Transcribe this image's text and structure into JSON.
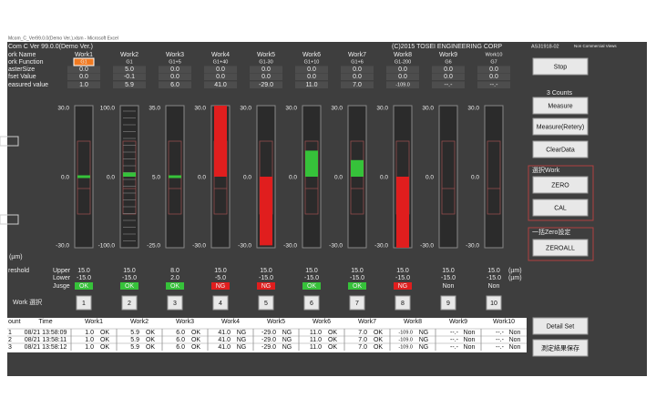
{
  "window_title": "Mcom_C_Ver99.0.0(Demo Ver.).xlsm - Microsoft Excel",
  "header": {
    "app": "Com C  Ver 99.0.0(Demo Ver.)",
    "copyright": "(C)2015 TOSEI ENGINEERING CORP",
    "code": "AS31918-02",
    "note": "Non Commercial Views"
  },
  "row_labels": [
    "ork Name",
    "ork Function",
    "asterSize",
    "fset Value",
    "easured value"
  ],
  "works": [
    {
      "name": "Work1",
      "function": "G1",
      "master": "0.0",
      "offset": "0.0",
      "measured": "1.0",
      "scale": [
        "30.0",
        "0.0",
        "-30.0"
      ],
      "upper": "15.0",
      "lower": "-15.0",
      "judge": "OK",
      "button": "1"
    },
    {
      "name": "Work2",
      "function": "G1",
      "master": "5.0",
      "offset": "-0.1",
      "measured": "5.9",
      "scale": [
        "100.0",
        "0.0",
        "-100.0"
      ],
      "upper": "15.0",
      "lower": "-15.0",
      "judge": "OK",
      "button": "2"
    },
    {
      "name": "Work3",
      "function": "G1+5",
      "master": "0.0",
      "offset": "0.0",
      "measured": "6.0",
      "scale": [
        "35.0",
        "5.0",
        "-25.0"
      ],
      "upper": "8.0",
      "lower": "2.0",
      "judge": "OK",
      "button": "3"
    },
    {
      "name": "Work4",
      "function": "G1+40",
      "master": "0.0",
      "offset": "0.0",
      "measured": "41.0",
      "scale": [
        "30.0",
        "0.0",
        "-30.0"
      ],
      "upper": "15.0",
      "lower": "-5.0",
      "judge": "NG",
      "button": "4"
    },
    {
      "name": "Work5",
      "function": "G1-30",
      "master": "0.0",
      "offset": "0.0",
      "measured": "-29.0",
      "scale": [
        "30.0",
        "0.0",
        "-30.0"
      ],
      "upper": "15.0",
      "lower": "-15.0",
      "judge": "NG",
      "button": "5"
    },
    {
      "name": "Work6",
      "function": "G1+10",
      "master": "0.0",
      "offset": "0.0",
      "measured": "11.0",
      "scale": [
        "30.0",
        "0.0",
        "-30.0"
      ],
      "upper": "15.0",
      "lower": "-15.0",
      "judge": "OK",
      "button": "6"
    },
    {
      "name": "Work7",
      "function": "G1+6",
      "master": "0.0",
      "offset": "0.0",
      "measured": "7.0",
      "scale": [
        "30.0",
        "0.0",
        "-30.0"
      ],
      "upper": "15.0",
      "lower": "-15.0",
      "judge": "OK",
      "button": "7"
    },
    {
      "name": "Work8",
      "function": "G1-200",
      "master": "0.0",
      "offset": "0.0",
      "measured": "-109.0",
      "scale": [
        "30.0",
        "0.0",
        "-30.0"
      ],
      "upper": "15.0",
      "lower": "-15.0",
      "judge": "NG",
      "button": "8"
    },
    {
      "name": "Work9",
      "function": "G6",
      "master": "0.0",
      "offset": "0.0",
      "measured": "--.-",
      "scale": [
        "30.0",
        "0.0",
        "-30.0"
      ],
      "upper": "15.0",
      "lower": "-15.0",
      "judge": "Non",
      "button": "9"
    },
    {
      "name": "Work10",
      "function": "G7",
      "master": "0.0",
      "offset": "0.0",
      "measured": "--.-",
      "scale": [
        "30.0",
        "0.0",
        "-30.0"
      ],
      "upper": "15.0",
      "lower": "-15.0",
      "judge": "Non",
      "button": "10"
    }
  ],
  "unit": "(µm)",
  "threshold": {
    "label": "reshold",
    "upper": "Upper",
    "lower": "Lower",
    "judge": "Jusge",
    "select": "Work 選択"
  },
  "panel": {
    "stop": "Stop",
    "counts": "3 Counts",
    "measure": "Measure",
    "retry": "Measure(Retery)",
    "clear": "ClearData",
    "group1": "選択Work",
    "zero": "ZERO",
    "cal": "CAL",
    "group2": "一括Zero設定",
    "zeroall": "ZEROALL",
    "detail": "Detail Set",
    "save": "測定結果保存"
  },
  "table": {
    "headers": [
      "ount",
      "Time",
      "Work1",
      "Work2",
      "Work3",
      "Work4",
      "Work5",
      "Work6",
      "Work7",
      "Work8",
      "Work9",
      "Work10"
    ],
    "rows": [
      [
        "1",
        "08/21 13:58:09",
        "1.0",
        "OK",
        "5.9",
        "OK",
        "6.0",
        "OK",
        "41.0",
        "NG",
        "-29.0",
        "NG",
        "11.0",
        "OK",
        "7.0",
        "OK",
        "-109.0",
        "NG",
        "--.-",
        "Non",
        "--.-",
        "Non"
      ],
      [
        "2",
        "08/21 13:58:11",
        "1.0",
        "OK",
        "5.9",
        "OK",
        "6.0",
        "OK",
        "41.0",
        "NG",
        "-29.0",
        "NG",
        "11.0",
        "OK",
        "7.0",
        "OK",
        "-109.0",
        "NG",
        "--.-",
        "Non",
        "--.-",
        "Non"
      ],
      [
        "3",
        "08/21 13:58:12",
        "1.0",
        "OK",
        "5.9",
        "OK",
        "6.0",
        "OK",
        "41.0",
        "NG",
        "-29.0",
        "NG",
        "11.0",
        "OK",
        "7.0",
        "OK",
        "-109.0",
        "NG",
        "--.-",
        "Non",
        "--.-",
        "Non"
      ]
    ]
  }
}
